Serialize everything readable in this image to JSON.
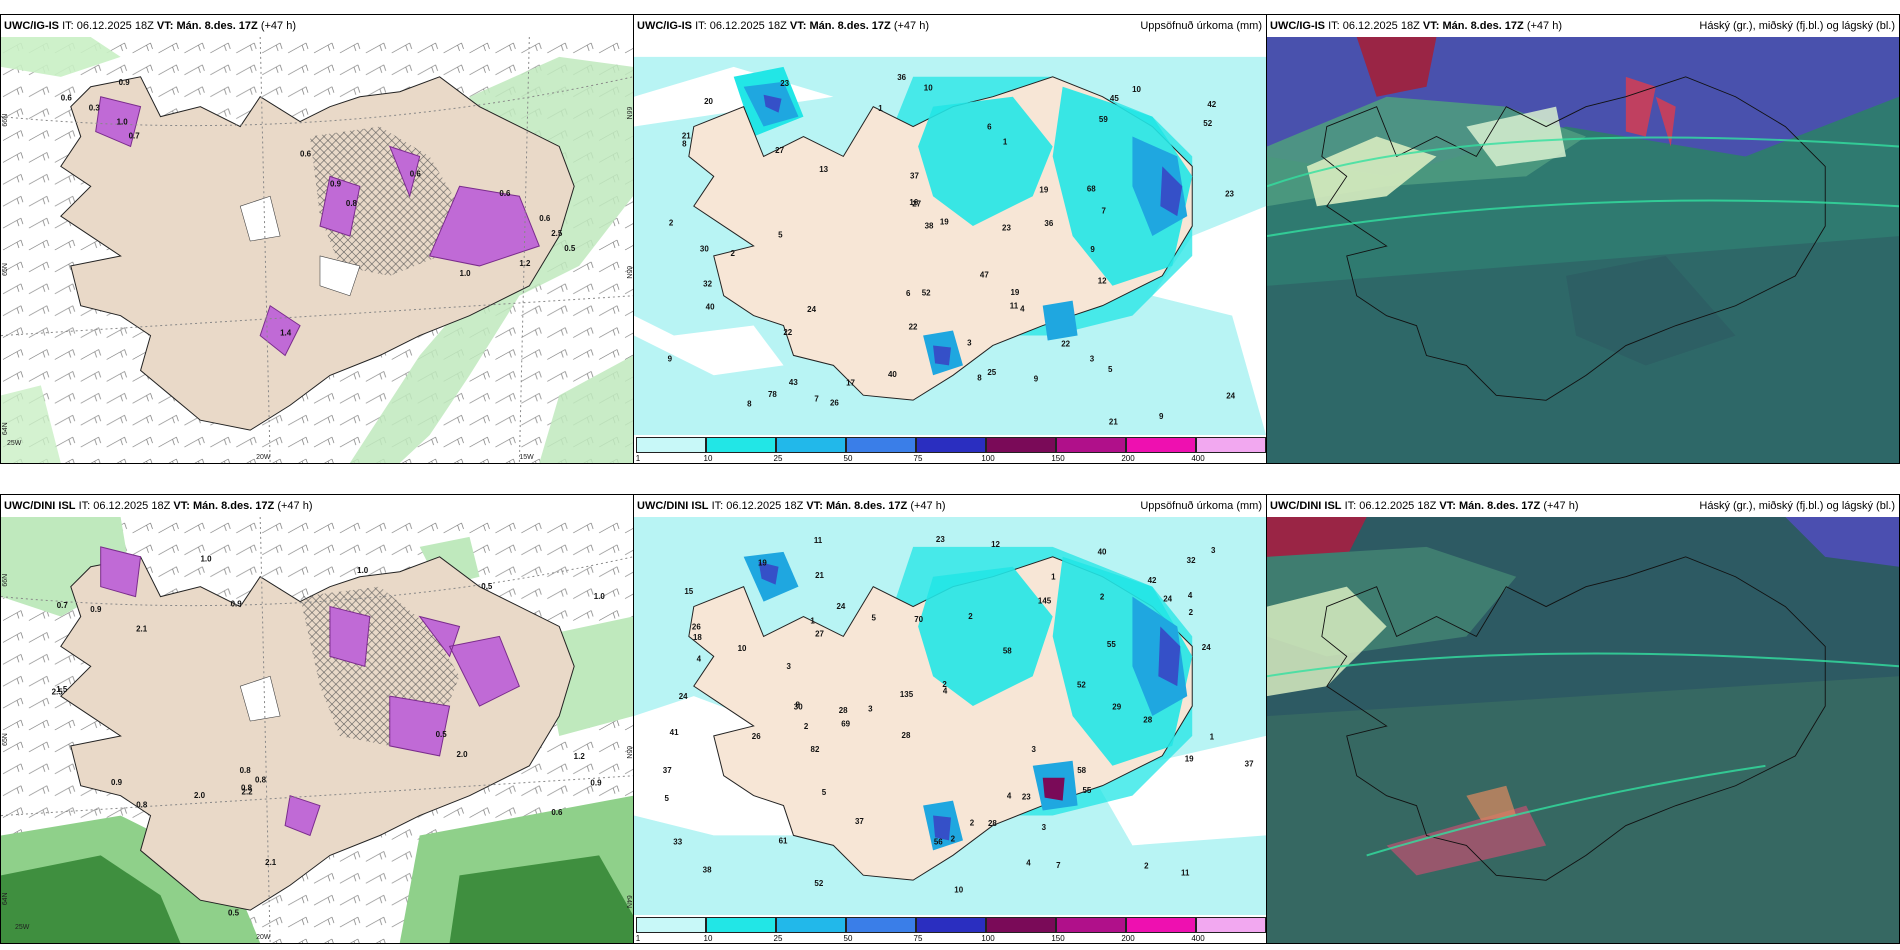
{
  "panels": [
    {
      "header": {
        "model": "UWC/IG-IS",
        "it_label": "IT:",
        "it": "06.12.2025 18Z",
        "vt_label": "VT:",
        "vt": "Mán. 8.des. 17Z",
        "lead": "(+47 h)",
        "right": ""
      },
      "labels": [
        "0.6",
        "0.3",
        "0.9",
        "1.0",
        "0.7",
        "0.8",
        "1.0",
        "1.2",
        "0.6",
        "0.6",
        "0.6",
        "0.9",
        "2.5",
        "0.5",
        "1.4",
        "0.6"
      ],
      "axes": [
        "66N",
        "65N",
        "64N",
        "20W",
        "15W",
        "66N",
        "65N",
        "25W"
      ]
    },
    {
      "header": {
        "model": "UWC/IG-IS",
        "it_label": "IT:",
        "it": "06.12.2025 18Z",
        "vt_label": "VT:",
        "vt": "Mán. 8.des. 17Z",
        "lead": "(+47 h)",
        "right": "Uppsöfnuð úrkoma (mm)"
      },
      "labels": [
        "2",
        "10",
        "68",
        "42",
        "21",
        "9",
        "2",
        "1",
        "37",
        "10",
        "19",
        "12",
        "36",
        "8",
        "27",
        "22",
        "25",
        "30",
        "47",
        "22",
        "22",
        "5",
        "52",
        "27",
        "43",
        "38",
        "19",
        "23",
        "26",
        "8",
        "32",
        "21",
        "23",
        "8",
        "7",
        "40",
        "7",
        "20",
        "17",
        "13",
        "3",
        "36",
        "24",
        "23",
        "52",
        "24",
        "59",
        "9",
        "40",
        "5",
        "19",
        "3",
        "4",
        "9",
        "9",
        "1",
        "11",
        "16",
        "45",
        "6",
        "6",
        "78"
      ],
      "colorbar": [
        "1",
        "10",
        "25",
        "50",
        "75",
        "100",
        "150",
        "200",
        "400"
      ]
    },
    {
      "header": {
        "model": "UWC/IG-IS",
        "it_label": "IT:",
        "it": "06.12.2025 18Z",
        "vt_label": "VT:",
        "vt": "Mán. 8.des. 17Z",
        "lead": "(+47 h)",
        "right": "Háský (gr.), miðský (fj.bl.) og lágský (bl.)"
      }
    },
    {
      "header": {
        "model": "UWC/DINI ISL",
        "it_label": "IT:",
        "it": "06.12.2025 18Z",
        "vt_label": "VT:",
        "vt": "Mán. 8.des. 17Z",
        "lead": "(+47 h)",
        "right": ""
      },
      "labels": [
        "0.7",
        "0.9",
        "0.5",
        "0.5",
        "0.6",
        "1.5",
        "2.5",
        "0.5",
        "1.2",
        "0.9",
        "0.9",
        "2.1",
        "1.0",
        "2.1",
        "2.0",
        "2.0",
        "0.8",
        "1.0",
        "1.0",
        "0.9",
        "0.8",
        "0.8",
        "2.2",
        "0.8"
      ],
      "axes": [
        "66N",
        "65N",
        "64N",
        "20W",
        "25W",
        "65N",
        "64N"
      ]
    },
    {
      "header": {
        "model": "UWC/DINI ISL",
        "it_label": "IT:",
        "it": "06.12.2025 18Z",
        "vt_label": "VT:",
        "vt": "Mán. 8.des. 17Z",
        "lead": "(+47 h)",
        "right": "Uppsöfnuð úrkoma (mm)"
      },
      "labels": [
        "12",
        "4",
        "3",
        "4",
        "3",
        "3",
        "2",
        "32",
        "55",
        "23",
        "28",
        "8",
        "5",
        "1",
        "2",
        "42",
        "29",
        "24",
        "58",
        "82",
        "40",
        "19",
        "38",
        "37",
        "4",
        "28",
        "33",
        "56",
        "41",
        "26",
        "135",
        "28",
        "26",
        "30",
        "11",
        "18",
        "27",
        "52",
        "10",
        "24",
        "23",
        "58",
        "69",
        "4",
        "37",
        "37",
        "24",
        "55",
        "61",
        "24",
        "52",
        "28",
        "70",
        "11",
        "4",
        "2",
        "1",
        "2",
        "2",
        "2",
        "3",
        "2",
        "1",
        "19",
        "2",
        "5",
        "7",
        "3",
        "10",
        "15",
        "21",
        "5",
        "145"
      ],
      "colorbar": [
        "1",
        "10",
        "25",
        "50",
        "75",
        "100",
        "150",
        "200",
        "400"
      ]
    },
    {
      "header": {
        "model": "UWC/DINI ISL",
        "it_label": "IT:",
        "it": "06.12.2025 18Z",
        "vt_label": "VT:",
        "vt": "Mán. 8.des. 17Z",
        "lead": "(+47 h)",
        "right": "Háský (gr.), miðský (fj.bl.) og lágský (bl.)"
      }
    }
  ],
  "colors": {
    "land": "#e9d9c8",
    "precip_light": "#b8f4f4",
    "precip_cyan": "#22e6e6",
    "precip_blue": "#1fa7e0",
    "precip_dark": "#3550c8",
    "snow_purple": "#c26ad6",
    "sea_green": "#b9e8b9",
    "cloud_teal": "#2f8a7a",
    "cloud_dark": "#2d5a63",
    "cloud_purple": "#4b4fb0",
    "cloud_red": "#9a2545"
  },
  "colorbar_colors": [
    "#c8f8f8",
    "#22e6e6",
    "#22b8ea",
    "#3a7ee8",
    "#2a2ec0",
    "#7a0a58",
    "#b0108a",
    "#ee10b0",
    "#f2a8f0"
  ]
}
